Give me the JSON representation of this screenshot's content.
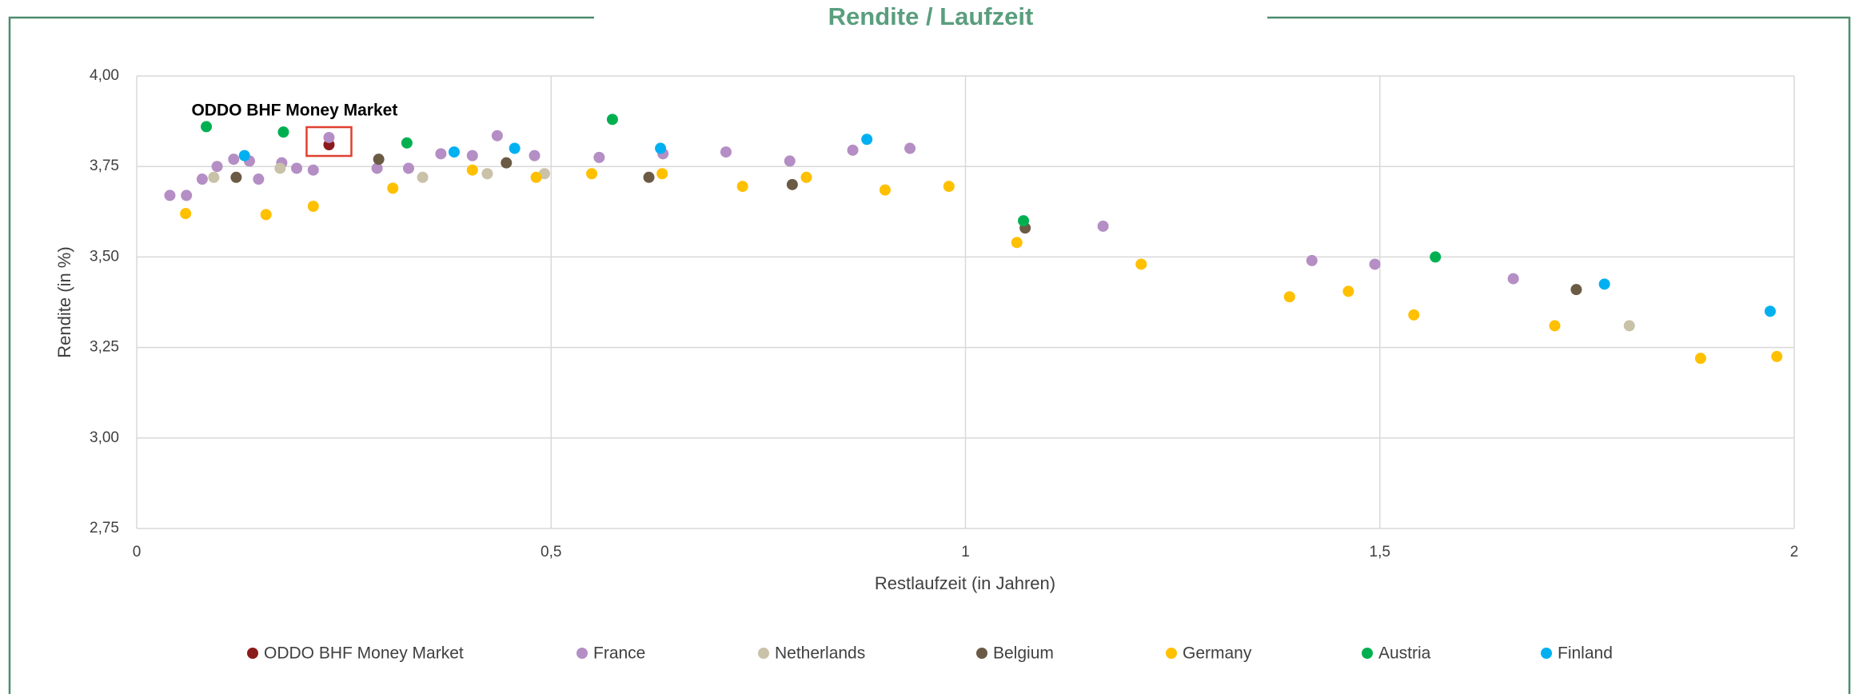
{
  "chart_data": {
    "type": "scatter",
    "title": "Rendite / Laufzeit",
    "xlabel": "Restlaufzeit (in Jahren)",
    "ylabel": "Rendite (in %)",
    "annotation": "ODDO BHF Money Market",
    "xlim": [
      0,
      2
    ],
    "ylim": [
      2.75,
      4
    ],
    "xticks": [
      0,
      {
        "value": 0.5,
        "label": "0,5"
      },
      1,
      {
        "value": 1.5,
        "label": "1,5"
      },
      2
    ],
    "yticks": [
      {
        "value": 2.75,
        "label": "2,75"
      },
      {
        "value": 3,
        "label": "3,00"
      },
      {
        "value": 3.25,
        "label": "3,25"
      },
      {
        "value": 3.5,
        "label": "3,50"
      },
      {
        "value": 3.75,
        "label": "3,75"
      },
      {
        "value": 4,
        "label": "4,00"
      }
    ],
    "grid": true,
    "legend": "bottom",
    "series": [
      {
        "name": "ODDO BHF Money Market",
        "color": "#8b1a1a",
        "x": [
          0.232
        ],
        "y": [
          3.81
        ]
      },
      {
        "name": "France",
        "color": "#b48ec4",
        "x": [
          0.04,
          0.06,
          0.079,
          0.097,
          0.117,
          0.136,
          0.147,
          0.175,
          0.193,
          0.213,
          0.232,
          0.29,
          0.328,
          0.367,
          0.405,
          0.435,
          0.48,
          0.558,
          0.635,
          0.711,
          0.788,
          0.864,
          0.933,
          1.166,
          1.418,
          1.494,
          1.661
        ],
        "y": [
          3.67,
          3.67,
          3.715,
          3.75,
          3.77,
          3.765,
          3.715,
          3.76,
          3.745,
          3.74,
          3.83,
          3.745,
          3.745,
          3.785,
          3.78,
          3.835,
          3.78,
          3.775,
          3.785,
          3.79,
          3.765,
          3.795,
          3.8,
          3.585,
          3.49,
          3.48,
          3.44
        ]
      },
      {
        "name": "Netherlands",
        "color": "#c9c2a8",
        "x": [
          0.093,
          0.173,
          0.345,
          0.423,
          0.492,
          1.801
        ],
        "y": [
          3.72,
          3.745,
          3.72,
          3.73,
          3.73,
          3.31
        ]
      },
      {
        "name": "Belgium",
        "color": "#6b5b45",
        "x": [
          0.12,
          0.292,
          0.446,
          0.618,
          0.791,
          1.072,
          1.737
        ],
        "y": [
          3.72,
          3.77,
          3.76,
          3.72,
          3.7,
          3.58,
          3.41
        ]
      },
      {
        "name": "Germany",
        "color": "#ffc000",
        "x": [
          0.059,
          0.156,
          0.213,
          0.309,
          0.405,
          0.482,
          0.549,
          0.634,
          0.731,
          0.808,
          0.903,
          0.98,
          1.062,
          1.212,
          1.391,
          1.462,
          1.541,
          1.711,
          1.887,
          1.979
        ],
        "y": [
          3.62,
          3.617,
          3.64,
          3.69,
          3.74,
          3.72,
          3.73,
          3.73,
          3.695,
          3.72,
          3.685,
          3.695,
          3.54,
          3.48,
          3.39,
          3.405,
          3.34,
          3.31,
          3.22,
          3.225
        ]
      },
      {
        "name": "Austria",
        "color": "#00b050",
        "x": [
          0.084,
          0.177,
          0.326,
          0.574,
          1.07,
          1.567
        ],
        "y": [
          3.86,
          3.845,
          3.815,
          3.88,
          3.6,
          3.5
        ]
      },
      {
        "name": "Finland",
        "color": "#00b0f0",
        "x": [
          0.13,
          0.383,
          0.456,
          0.632,
          0.881,
          1.771,
          1.971
        ],
        "y": [
          3.78,
          3.79,
          3.8,
          3.8,
          3.825,
          3.425,
          3.35
        ]
      }
    ]
  }
}
